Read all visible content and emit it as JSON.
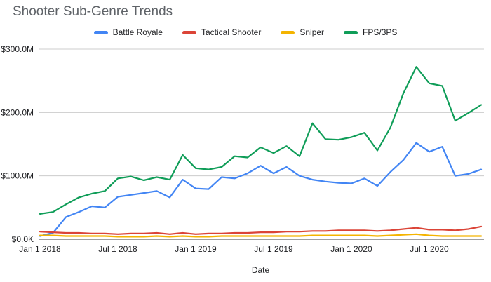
{
  "chart_data": {
    "type": "line",
    "title": "Shooter Sub-Genre Trends",
    "xlabel": "Date",
    "ylabel": "",
    "ylim": [
      0,
      300
    ],
    "grid": "horizontal",
    "legend_position": "top-center",
    "y_unit": "USD millions",
    "categories": [
      "Jan 2018",
      "Feb 2018",
      "Mar 2018",
      "Apr 2018",
      "May 2018",
      "Jun 2018",
      "Jul 2018",
      "Aug 2018",
      "Sep 2018",
      "Oct 2018",
      "Nov 2018",
      "Dec 2018",
      "Jan 2019",
      "Feb 2019",
      "Mar 2019",
      "Apr 2019",
      "May 2019",
      "Jun 2019",
      "Jul 2019",
      "Aug 2019",
      "Sep 2019",
      "Oct 2019",
      "Nov 2019",
      "Dec 2019",
      "Jan 2020",
      "Feb 2020",
      "Mar 2020",
      "Apr 2020",
      "May 2020",
      "Jun 2020",
      "Jul 2020",
      "Aug 2020",
      "Sep 2020",
      "Oct 2020",
      "Nov 2020"
    ],
    "series": [
      {
        "name": "Battle Royale",
        "color": "#4285f4",
        "values": [
          5,
          10,
          35,
          43,
          52,
          50,
          67,
          70,
          73,
          76,
          66,
          94,
          80,
          79,
          98,
          96,
          104,
          116,
          104,
          114,
          100,
          94,
          91,
          89,
          88,
          96,
          84,
          106,
          125,
          152,
          138,
          146,
          100,
          103,
          110
        ]
      },
      {
        "name": "Tactical Shooter",
        "color": "#db4437",
        "values": [
          12,
          11,
          10,
          10,
          9,
          9,
          8,
          9,
          9,
          10,
          8,
          10,
          8,
          9,
          9,
          10,
          10,
          11,
          11,
          12,
          12,
          13,
          13,
          14,
          14,
          14,
          13,
          14,
          16,
          18,
          15,
          15,
          14,
          16,
          20
        ]
      },
      {
        "name": "Sniper",
        "color": "#f4b400",
        "values": [
          6,
          6,
          5,
          5,
          5,
          5,
          4,
          4,
          4,
          5,
          4,
          5,
          4,
          4,
          5,
          5,
          5,
          5,
          5,
          5,
          5,
          6,
          6,
          6,
          6,
          6,
          5,
          6,
          7,
          8,
          6,
          5,
          5,
          5,
          5
        ]
      },
      {
        "name": "FPS/3PS",
        "color": "#0f9d58",
        "values": [
          40,
          43,
          55,
          66,
          72,
          76,
          96,
          99,
          93,
          98,
          94,
          133,
          112,
          110,
          114,
          131,
          129,
          145,
          136,
          147,
          131,
          183,
          158,
          157,
          161,
          168,
          140,
          176,
          230,
          272,
          246,
          242,
          187,
          199,
          212
        ]
      }
    ],
    "y_ticks": [
      {
        "value": 0,
        "label": "$0.0K"
      },
      {
        "value": 100,
        "label": "$100.0M"
      },
      {
        "value": 200,
        "label": "$200.0M"
      },
      {
        "value": 300,
        "label": "$300.0M"
      }
    ],
    "x_ticks": [
      {
        "index": 0,
        "label": "Jan 1 2018"
      },
      {
        "index": 6,
        "label": "Jul 1 2018"
      },
      {
        "index": 12,
        "label": "Jan 1 2019"
      },
      {
        "index": 18,
        "label": "Jul 1 2019"
      },
      {
        "index": 24,
        "label": "Jan 1 2020"
      },
      {
        "index": 30,
        "label": "Jul 1 2020"
      }
    ]
  }
}
